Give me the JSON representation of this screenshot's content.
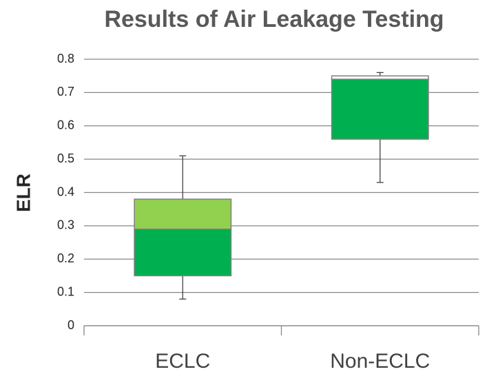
{
  "chart_data": {
    "type": "box",
    "title": "Results of Air Leakage Testing",
    "y_label": "ELR",
    "categories": [
      "ECLC",
      "Non-ECLC"
    ],
    "boxes": [
      {
        "min": 0.08,
        "q1": 0.15,
        "median": 0.29,
        "q3": 0.38,
        "max": 0.51,
        "lower_color": "#00b050",
        "upper_color": "#92d050"
      },
      {
        "min": 0.43,
        "q1": 0.56,
        "median": 0.74,
        "q3": 0.75,
        "max": 0.76,
        "lower_color": "#00b050",
        "upper_color": "#ffffff"
      }
    ],
    "ylim": [
      0,
      0.8
    ],
    "yticks": [
      0,
      0.1,
      0.2,
      0.3,
      0.4,
      0.5,
      0.6,
      0.7,
      0.8
    ],
    "grid": true
  }
}
